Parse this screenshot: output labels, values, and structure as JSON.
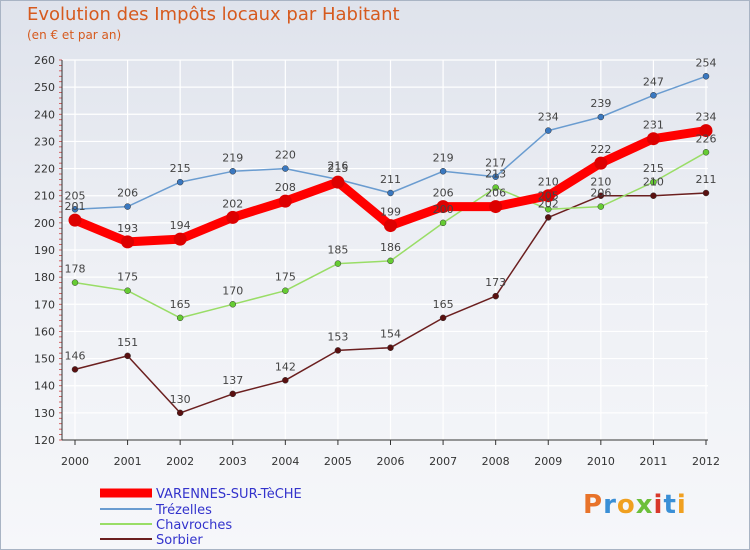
{
  "title": "Evolution des Impôts locaux par Habitant",
  "subtitle": "(en € et par an)",
  "logo": {
    "text": "Proxiti"
  },
  "colors": {
    "varennes": "#ff0000",
    "varennes_marker": "#dd0000",
    "trezelles": "#6a9cd0",
    "trezelles_marker": "#3a78c0",
    "chavroches": "#99dd66",
    "chavroches_marker": "#66cc33",
    "sorbier": "#6b1f1f",
    "sorbier_marker": "#5a1010",
    "axis": "#333333",
    "grid": "#ffffff",
    "label": "#444444",
    "legend_text": "#3333cc"
  },
  "chart_data": {
    "type": "line",
    "title": "Evolution des Impôts locaux par Habitant",
    "subtitle": "(en € et par an)",
    "xlabel": "",
    "ylabel": "",
    "x": [
      "2000",
      "2001",
      "2002",
      "2003",
      "2004",
      "2005",
      "2006",
      "2007",
      "2008",
      "2009",
      "2010",
      "2011",
      "2012"
    ],
    "ylim": [
      120,
      260
    ],
    "yticks": [
      120,
      130,
      140,
      150,
      160,
      170,
      180,
      190,
      200,
      210,
      220,
      230,
      240,
      250,
      260
    ],
    "grid": true,
    "legend_position": "bottom-left",
    "series": [
      {
        "name": "VARENNES-SUR-TèCHE",
        "key": "varennes",
        "width": 9,
        "values": [
          201,
          193,
          194,
          202,
          208,
          215,
          199,
          206,
          206,
          210,
          222,
          231,
          234
        ]
      },
      {
        "name": "Trézelles",
        "key": "trezelles",
        "width": 1.5,
        "values": [
          205,
          206,
          215,
          219,
          220,
          216,
          211,
          219,
          217,
          234,
          239,
          247,
          254
        ]
      },
      {
        "name": "Chavroches",
        "key": "chavroches",
        "width": 1.5,
        "values": [
          178,
          175,
          165,
          170,
          175,
          185,
          186,
          200,
          213,
          205,
          206,
          215,
          226
        ]
      },
      {
        "name": "Sorbier",
        "key": "sorbier",
        "width": 1.5,
        "values": [
          146,
          151,
          130,
          137,
          142,
          153,
          154,
          165,
          173,
          202,
          210,
          210,
          211
        ]
      }
    ],
    "data_labels": [
      {
        "series": "Trézelles",
        "labels": [
          "205",
          "206",
          "215",
          "219",
          "220",
          "216",
          "211",
          "219",
          "217",
          "234",
          "239",
          "247",
          "254"
        ]
      },
      {
        "series": "VARENNES-SUR-TèCHE",
        "labels": [
          "201",
          "193",
          "194",
          "202",
          "208",
          "215",
          "199",
          "206",
          "206",
          "210",
          "222",
          "231",
          "234"
        ]
      },
      {
        "series": "Chavroches",
        "labels": [
          "178",
          "175",
          "165",
          "170",
          "175",
          "185",
          "186",
          "200",
          "213",
          "205",
          "206",
          "215",
          "226"
        ]
      },
      {
        "series": "Sorbier",
        "labels": [
          "146",
          "151",
          "130",
          "137",
          "142",
          "153",
          "154",
          "165",
          "173",
          "202",
          "210",
          "210",
          "211"
        ]
      }
    ]
  }
}
